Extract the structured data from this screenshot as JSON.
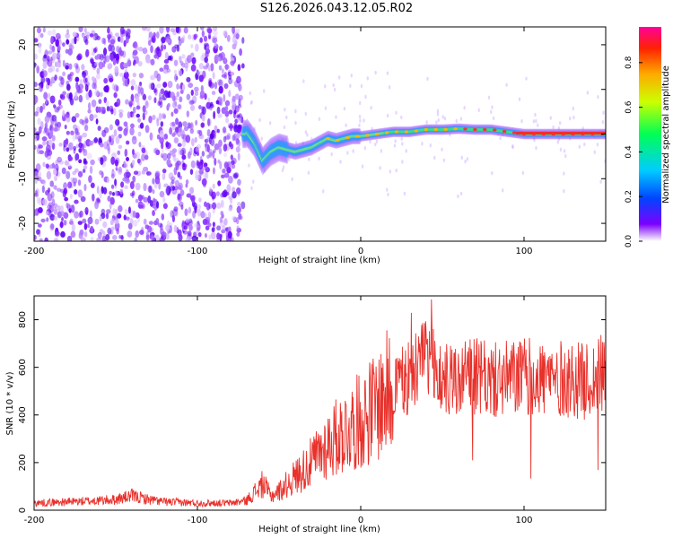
{
  "title": "S126.2026.043.12.05.R02",
  "colors": {
    "snr_line": "#e8312b",
    "axis": "#000000"
  },
  "chart_data": [
    {
      "type": "heatmap",
      "title": "S126.2026.043.12.05.R02",
      "xlabel": "Height of straight line (km)",
      "ylabel": "Frequency (Hz)",
      "xlim": [
        -200,
        150
      ],
      "ylim": [
        -24,
        24
      ],
      "xticks": [
        -200,
        -100,
        0,
        100
      ],
      "xtick_labels": [
        "-200",
        "-100",
        "0",
        "100"
      ],
      "yticks": [
        -20,
        -10,
        0,
        10,
        20
      ],
      "ytick_labels": [
        "-20",
        "-10",
        "0",
        "10",
        "20"
      ],
      "colorbar": {
        "label": "Normalized spectral amplitude",
        "range": [
          0,
          0.96
        ],
        "ticks": [
          0.0,
          0.2,
          0.4,
          0.6,
          0.8
        ],
        "tick_labels": [
          "0.0",
          "0.2",
          "0.4",
          "0.6",
          "0.8"
        ],
        "stops": [
          "#ffffff",
          "#7b00ff",
          "#0044ff",
          "#00ccff",
          "#00ff55",
          "#ccff00",
          "#ffaa00",
          "#ff2200",
          "#ff0099"
        ]
      },
      "noise_region": {
        "x_from": -200,
        "x_to": -72,
        "freq_from": -24,
        "freq_to": 24
      },
      "ridge": {
        "description_points_x": [
          -70,
          -65,
          -60,
          -55,
          -50,
          -45,
          -40,
          -35,
          -30,
          -25,
          -20,
          -15,
          -10,
          -5,
          0,
          10,
          20,
          30,
          40,
          50,
          60,
          70,
          80,
          90,
          100,
          110,
          120,
          130,
          140,
          150
        ],
        "description_points_freq": [
          0.5,
          -2,
          -6,
          -4,
          -3,
          -3.5,
          -4,
          -3.5,
          -3,
          -2,
          -1,
          -1.5,
          -1,
          -0.5,
          -0.5,
          0,
          0.5,
          0.5,
          1,
          1,
          1.2,
          1,
          1,
          0.5,
          0,
          0,
          0,
          0,
          0,
          0
        ]
      }
    },
    {
      "type": "line",
      "xlabel": "Height of straight line (km)",
      "ylabel": "SNR (10 * v/v)",
      "xlim": [
        -200,
        150
      ],
      "ylim": [
        0,
        900
      ],
      "xticks": [
        -200,
        -100,
        0,
        100
      ],
      "xtick_labels": [
        "-200",
        "-100",
        "0",
        "100"
      ],
      "yticks": [
        0,
        200,
        400,
        600,
        800
      ],
      "ytick_labels": [
        "0",
        "200",
        "400",
        "600",
        "800"
      ],
      "series": [
        {
          "name": "SNR",
          "x": [
            -200,
            -180,
            -160,
            -150,
            -140,
            -130,
            -120,
            -100,
            -80,
            -70,
            -60,
            -55,
            -50,
            -40,
            -30,
            -20,
            -10,
            0,
            10,
            20,
            30,
            40,
            50,
            60,
            70,
            80,
            100,
            120,
            140,
            150
          ],
          "values": [
            30,
            35,
            40,
            45,
            60,
            45,
            35,
            30,
            30,
            40,
            110,
            60,
            80,
            140,
            200,
            280,
            330,
            380,
            440,
            520,
            570,
            620,
            550,
            540,
            560,
            540,
            560,
            550,
            540,
            580
          ]
        }
      ]
    }
  ]
}
